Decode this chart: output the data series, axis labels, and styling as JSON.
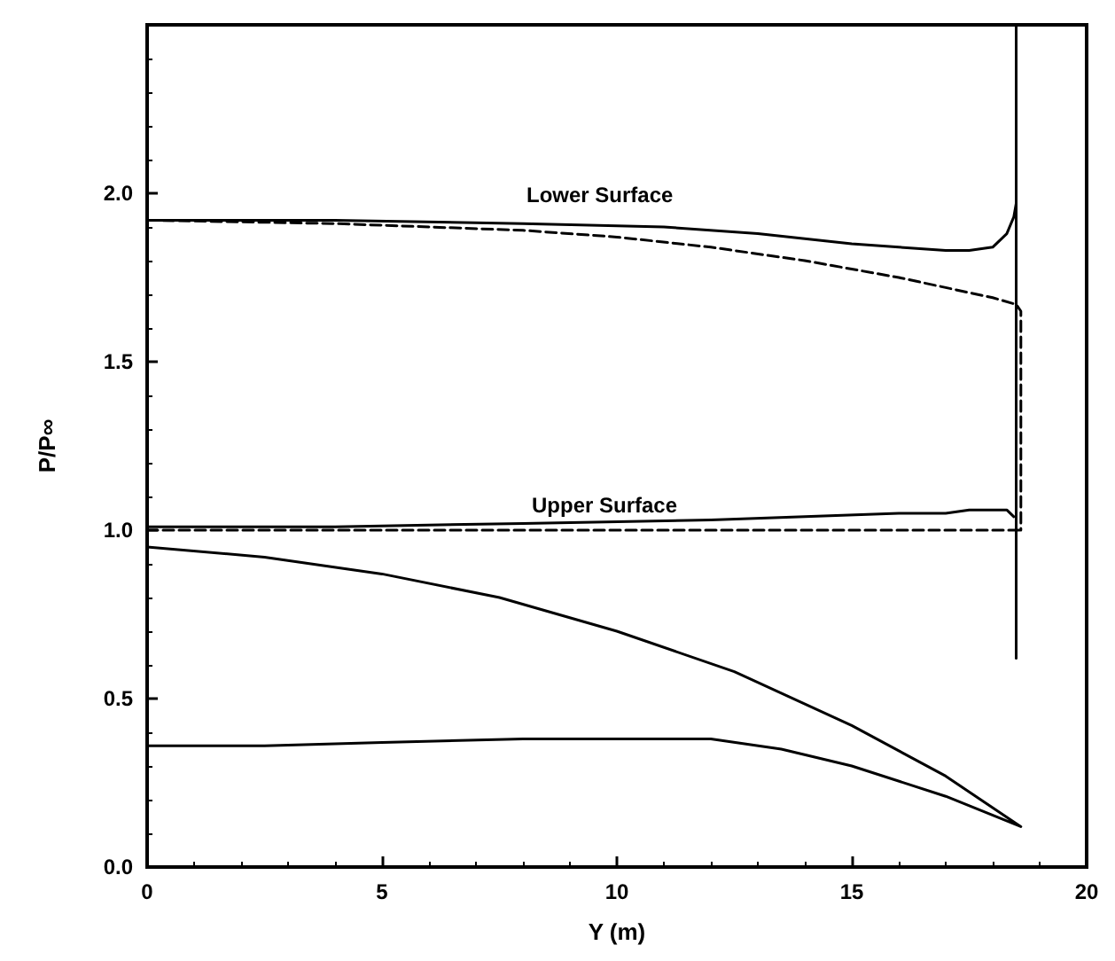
{
  "chart_data": {
    "type": "line",
    "xlabel": "Y (m)",
    "ylabel": "P/P∞",
    "xlim": [
      0,
      20
    ],
    "xticks": [
      0,
      5,
      10,
      15,
      20
    ],
    "ylim": [
      0,
      2.5
    ],
    "yticks": [
      {
        "value": 0,
        "label": "0.0"
      },
      {
        "value": 0.5,
        "label": "0.5"
      },
      {
        "value": 1,
        "label": "1.0"
      },
      {
        "value": 1.5,
        "label": "1.5"
      },
      {
        "value": 2,
        "label": "2.0"
      }
    ],
    "grid": false,
    "marker": "none",
    "annotations": [
      "Lower Surface",
      "Upper Surface"
    ],
    "series": [
      {
        "color": "#000000",
        "line_style": "solid",
        "x": [
          0,
          4,
          8,
          11,
          13,
          15,
          16,
          17,
          17.5,
          18,
          18.3,
          18.45,
          18.5
        ],
        "values": [
          1.92,
          1.92,
          1.91,
          1.9,
          1.88,
          1.85,
          1.84,
          1.83,
          1.83,
          1.84,
          1.88,
          1.93,
          1.97
        ]
      },
      {
        "color": "#000000",
        "line_style": "dashed",
        "x": [
          0,
          4,
          8,
          10,
          12,
          14,
          16,
          17,
          18,
          18.5,
          18.6,
          18.6
        ],
        "values": [
          1.92,
          1.91,
          1.89,
          1.87,
          1.84,
          1.8,
          1.75,
          1.72,
          1.69,
          1.67,
          1.65,
          1.0
        ]
      },
      {
        "color": "#000000",
        "line_style": "solid",
        "x": [
          0,
          4,
          8,
          12,
          14,
          16,
          17,
          17.5,
          18,
          18.3,
          18.45
        ],
        "values": [
          1.01,
          1.01,
          1.02,
          1.03,
          1.04,
          1.05,
          1.05,
          1.06,
          1.06,
          1.06,
          1.04
        ]
      },
      {
        "color": "#000000",
        "line_style": "dashed",
        "x": [
          0,
          18.6
        ],
        "values": [
          1.0,
          1.0
        ]
      },
      {
        "color": "#000000",
        "line_style": "solid",
        "x": [
          18.5,
          18.5
        ],
        "values": [
          2.5,
          0.62
        ]
      },
      {
        "color": "#000000",
        "line_style": "solid",
        "x": [
          0,
          2.5,
          5,
          7.5,
          10,
          12.5,
          15,
          17,
          18.6,
          17,
          15,
          13.5,
          12,
          10.5,
          8,
          5,
          2.5,
          0
        ],
        "values": [
          0.95,
          0.92,
          0.87,
          0.8,
          0.7,
          0.58,
          0.42,
          0.27,
          0.12,
          0.21,
          0.3,
          0.35,
          0.38,
          0.38,
          0.38,
          0.37,
          0.36,
          0.36
        ]
      }
    ]
  }
}
